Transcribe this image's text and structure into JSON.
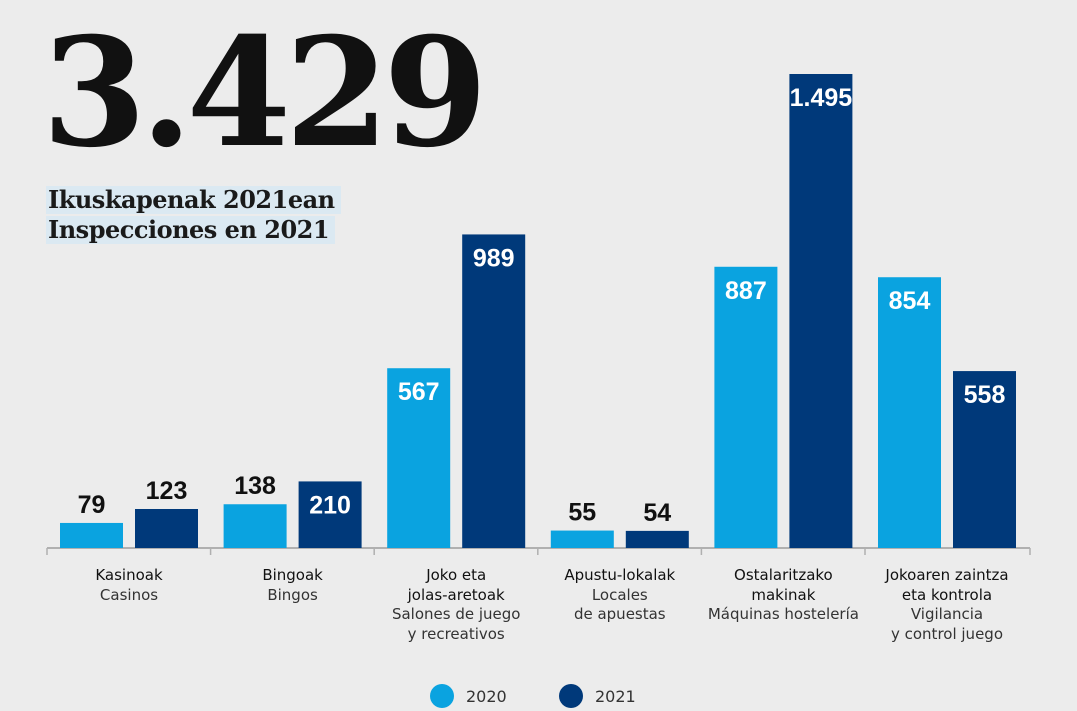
{
  "headline": {
    "number": "3.429",
    "subtitle_eu": "Ikuskapenak 2021ean",
    "subtitle_es": "Inspecciones en 2021"
  },
  "colors": {
    "y2020": "#0aa3e0",
    "y2021": "#00397a",
    "axis": "#b0b0b0"
  },
  "chart_data": {
    "type": "bar",
    "categories": [
      {
        "main": [
          "Kasinoak"
        ],
        "sub": [
          "Casinos"
        ]
      },
      {
        "main": [
          "Bingoak"
        ],
        "sub": [
          "Bingos"
        ]
      },
      {
        "main": [
          "Joko eta",
          "jolas-aretoak"
        ],
        "sub": [
          "Salones de juego",
          "y recreativos"
        ]
      },
      {
        "main": [
          "Apustu-lokalak"
        ],
        "sub": [
          "Locales",
          "de apuestas"
        ]
      },
      {
        "main": [
          "Ostalaritzako",
          "makinak"
        ],
        "sub": [
          "Máquinas hostelería"
        ]
      },
      {
        "main": [
          "Jokoaren zaintza",
          "eta kontrola"
        ],
        "sub": [
          "Vigilancia",
          "y control juego"
        ]
      }
    ],
    "series": [
      {
        "name": "2020",
        "values": [
          79,
          138,
          567,
          55,
          887,
          854
        ],
        "labels": [
          "79",
          "138",
          "567",
          "55",
          "887",
          "854"
        ]
      },
      {
        "name": "2021",
        "values": [
          123,
          210,
          989,
          54,
          1495,
          558
        ],
        "labels": [
          "123",
          "210",
          "989",
          "54",
          "1.495",
          "558"
        ]
      }
    ],
    "ylim": [
      0,
      1495
    ],
    "legend": "bottom-center"
  }
}
